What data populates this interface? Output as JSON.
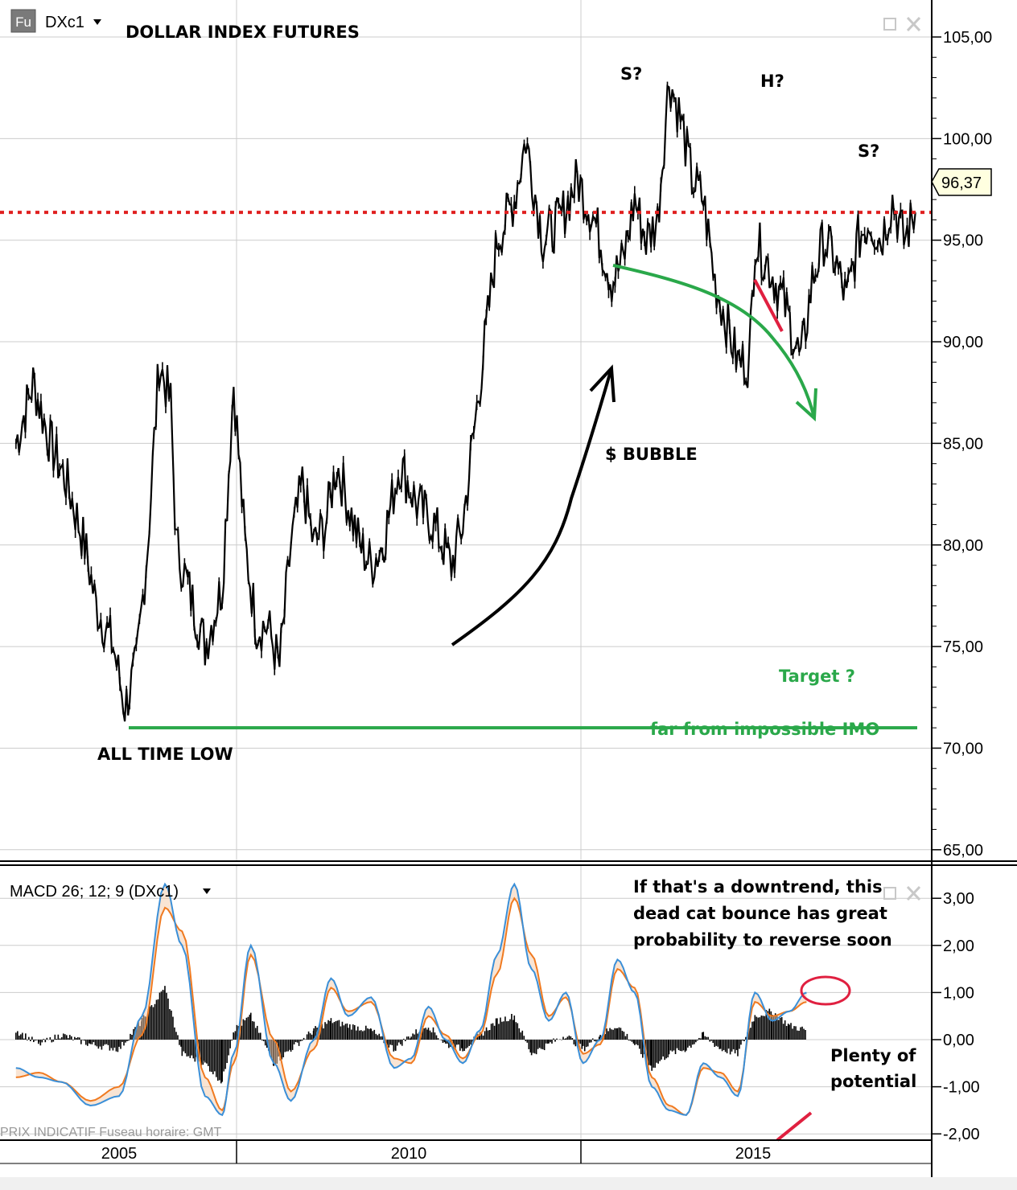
{
  "header": {
    "source_badge": "Fu",
    "ticker": "DXc1",
    "title": "DOLLAR INDEX FUTURES",
    "current_price": "96,37"
  },
  "macd_panel": {
    "label": "MACD 26; 12; 9 (DXc1)"
  },
  "footer": {
    "note": "PRIX INDICATIF   Fuseau horaire: GMT"
  },
  "annotations": {
    "s_left": "S?",
    "head": "H?",
    "s_right": "S?",
    "bubble": "$ BUBBLE",
    "target": "Target  ?",
    "far_from_impossible": "far from impossible IMO",
    "all_time_low": "ALL TIME LOW",
    "downtrend_line1": "If that's a downtrend, this",
    "downtrend_line2": "dead cat bounce has great",
    "downtrend_line3": "probability to reverse soon",
    "potential_line1": "Plenty of",
    "potential_line2": "potential"
  },
  "colors": {
    "price": "#000000",
    "current_price_line": "#e02020",
    "target_line": "#2aa84a",
    "annotation_green": "#2aa84a",
    "annotation_red": "#e02040",
    "macd_line": "#3a8fd8",
    "signal_line": "#f07a20",
    "histogram": "#000000",
    "grid": "#cccccc"
  },
  "chart_data": [
    {
      "type": "line",
      "title": "DOLLAR INDEX FUTURES",
      "ticker": "DXc1",
      "y_axis": {
        "ticks": [
          "105,00",
          "100,00",
          "95,00",
          "90,00",
          "85,00",
          "80,00",
          "75,00",
          "70,00",
          "65,00"
        ],
        "tick_values": [
          105,
          100,
          95,
          90,
          85,
          80,
          75,
          70,
          65
        ],
        "ylim": [
          64.5,
          106.5
        ]
      },
      "x_axis": {
        "ticks": [
          "2005",
          "2010",
          "2015"
        ],
        "tick_values": [
          2005,
          2010,
          2015
        ],
        "xlim": [
          2003.2,
          2019.2
        ]
      },
      "current_price": 96.37,
      "target_level": 71,
      "series": [
        {
          "x": [
            2003.2,
            2003.5,
            2003.8,
            2004.1,
            2004.4,
            2004.6,
            2004.9,
            2005.1,
            2005.3,
            2005.5,
            2005.7,
            2005.9,
            2006.0,
            2006.2,
            2006.5,
            2006.8,
            2007.0,
            2007.2,
            2007.4,
            2007.6,
            2007.8,
            2008.0,
            2008.2,
            2008.4,
            2008.6,
            2008.8,
            2009.0,
            2009.2,
            2009.4,
            2009.6,
            2009.9,
            2010.2,
            2010.5,
            2010.8,
            2011.0,
            2011.3,
            2011.6,
            2011.9,
            2012.1,
            2012.4,
            2012.7,
            2013.0,
            2013.3,
            2013.6,
            2013.8,
            2014.0,
            2014.2,
            2014.4,
            2014.6,
            2014.8,
            2015.0,
            2015.2,
            2015.4,
            2015.6,
            2015.8,
            2016.0,
            2016.1,
            2016.3,
            2016.6,
            2016.9,
            2017.1,
            2017.3,
            2017.5,
            2017.7,
            2017.9,
            2018.1,
            2018.3,
            2018.5,
            2018.7,
            2018.9
          ],
          "y": [
            85,
            88,
            85,
            83,
            80,
            77,
            75,
            72,
            74,
            80,
            89,
            87,
            80,
            78,
            75,
            78,
            88,
            80,
            76,
            76,
            74,
            80,
            83,
            80,
            81,
            84,
            82,
            80,
            79,
            80,
            84,
            82,
            81,
            79,
            81,
            88,
            95,
            97,
            100,
            95,
            96,
            98,
            96,
            93,
            94,
            97,
            95,
            96,
            103,
            101,
            98,
            97,
            93,
            91,
            89,
            89,
            95,
            94,
            92,
            89,
            93,
            95,
            94,
            92,
            95,
            96,
            95,
            97,
            95,
            96.37
          ]
        }
      ]
    },
    {
      "type": "line",
      "title": "MACD 26; 12; 9 (DXc1)",
      "y_axis": {
        "ticks": [
          "3,00",
          "2,00",
          "1,00",
          "0,00",
          "-1,00",
          "-2,00"
        ],
        "tick_values": [
          3,
          2,
          1,
          0,
          -1,
          -2
        ],
        "ylim": [
          -2.2,
          3.6
        ]
      },
      "series": [
        {
          "name": "MACD",
          "x": [
            2003.2,
            2003.6,
            2004.0,
            2004.5,
            2005.0,
            2005.4,
            2005.8,
            2006.1,
            2006.5,
            2006.8,
            2007.0,
            2007.3,
            2007.7,
            2008.0,
            2008.4,
            2008.7,
            2009.0,
            2009.4,
            2009.8,
            2010.1,
            2010.4,
            2010.7,
            2011.0,
            2011.3,
            2011.6,
            2011.9,
            2012.2,
            2012.5,
            2012.8,
            2013.1,
            2013.4,
            2013.7,
            2014.0,
            2014.3,
            2014.6,
            2014.9,
            2015.2,
            2015.5,
            2015.8,
            2016.1,
            2016.4,
            2016.7,
            2017.0
          ],
          "y": [
            -0.6,
            -0.8,
            -0.9,
            -1.4,
            -1.2,
            0.5,
            3.3,
            2.0,
            -1.2,
            -1.6,
            -0.3,
            2.0,
            -0.5,
            -1.3,
            0.0,
            1.3,
            0.5,
            0.9,
            -0.6,
            -0.4,
            0.7,
            0.0,
            -0.5,
            0.2,
            1.8,
            3.3,
            1.5,
            0.4,
            1.0,
            -0.5,
            0.0,
            1.7,
            1.0,
            -1.0,
            -1.5,
            -1.6,
            -0.5,
            -0.8,
            -1.2,
            1.0,
            0.4,
            0.6,
            1.0
          ]
        },
        {
          "name": "Signal",
          "x": [
            2003.2,
            2003.6,
            2004.0,
            2004.5,
            2005.0,
            2005.4,
            2005.8,
            2006.1,
            2006.5,
            2006.8,
            2007.0,
            2007.3,
            2007.7,
            2008.0,
            2008.4,
            2008.7,
            2009.0,
            2009.4,
            2009.8,
            2010.1,
            2010.4,
            2010.7,
            2011.0,
            2011.3,
            2011.6,
            2011.9,
            2012.2,
            2012.5,
            2012.8,
            2013.1,
            2013.4,
            2013.7,
            2014.0,
            2014.3,
            2014.6,
            2014.9,
            2015.2,
            2015.5,
            2015.8,
            2016.1,
            2016.4,
            2016.7,
            2017.0
          ],
          "y": [
            -0.8,
            -0.7,
            -0.9,
            -1.3,
            -1.0,
            0.1,
            2.8,
            2.3,
            -0.8,
            -1.5,
            -0.5,
            1.8,
            0.0,
            -1.1,
            -0.2,
            1.1,
            0.6,
            0.8,
            -0.4,
            -0.5,
            0.5,
            0.1,
            -0.4,
            0.1,
            1.4,
            3.0,
            1.8,
            0.5,
            0.9,
            -0.3,
            -0.1,
            1.5,
            1.1,
            -0.8,
            -1.4,
            -1.6,
            -0.6,
            -0.7,
            -1.1,
            0.8,
            0.5,
            0.6,
            0.8
          ]
        }
      ],
      "histogram": {
        "x": [
          2003.2,
          2003.6,
          2004.0,
          2004.5,
          2005.0,
          2005.4,
          2005.8,
          2006.1,
          2006.5,
          2006.8,
          2007.0,
          2007.3,
          2007.7,
          2008.0,
          2008.4,
          2008.7,
          2009.0,
          2009.4,
          2009.8,
          2010.1,
          2010.4,
          2010.7,
          2011.0,
          2011.3,
          2011.6,
          2011.9,
          2012.2,
          2012.5,
          2012.8,
          2013.1,
          2013.4,
          2013.7,
          2014.0,
          2014.3,
          2014.6,
          2014.9,
          2015.2,
          2015.5,
          2015.8,
          2016.1,
          2016.4,
          2016.7,
          2017.0
        ],
        "y": [
          0.2,
          -0.1,
          0.1,
          -0.1,
          -0.2,
          0.4,
          1.1,
          -0.3,
          -0.5,
          -0.9,
          0.2,
          0.5,
          -0.5,
          -0.2,
          0.2,
          0.4,
          0.3,
          0.2,
          -0.2,
          0.1,
          0.3,
          -0.1,
          -0.2,
          0.1,
          0.4,
          0.5,
          -0.3,
          -0.1,
          0.1,
          -0.2,
          0.1,
          0.3,
          -0.1,
          -0.6,
          -0.3,
          -0.2,
          0.1,
          -0.2,
          -0.3,
          0.5,
          0.6,
          0.3,
          0.2
        ]
      }
    }
  ]
}
